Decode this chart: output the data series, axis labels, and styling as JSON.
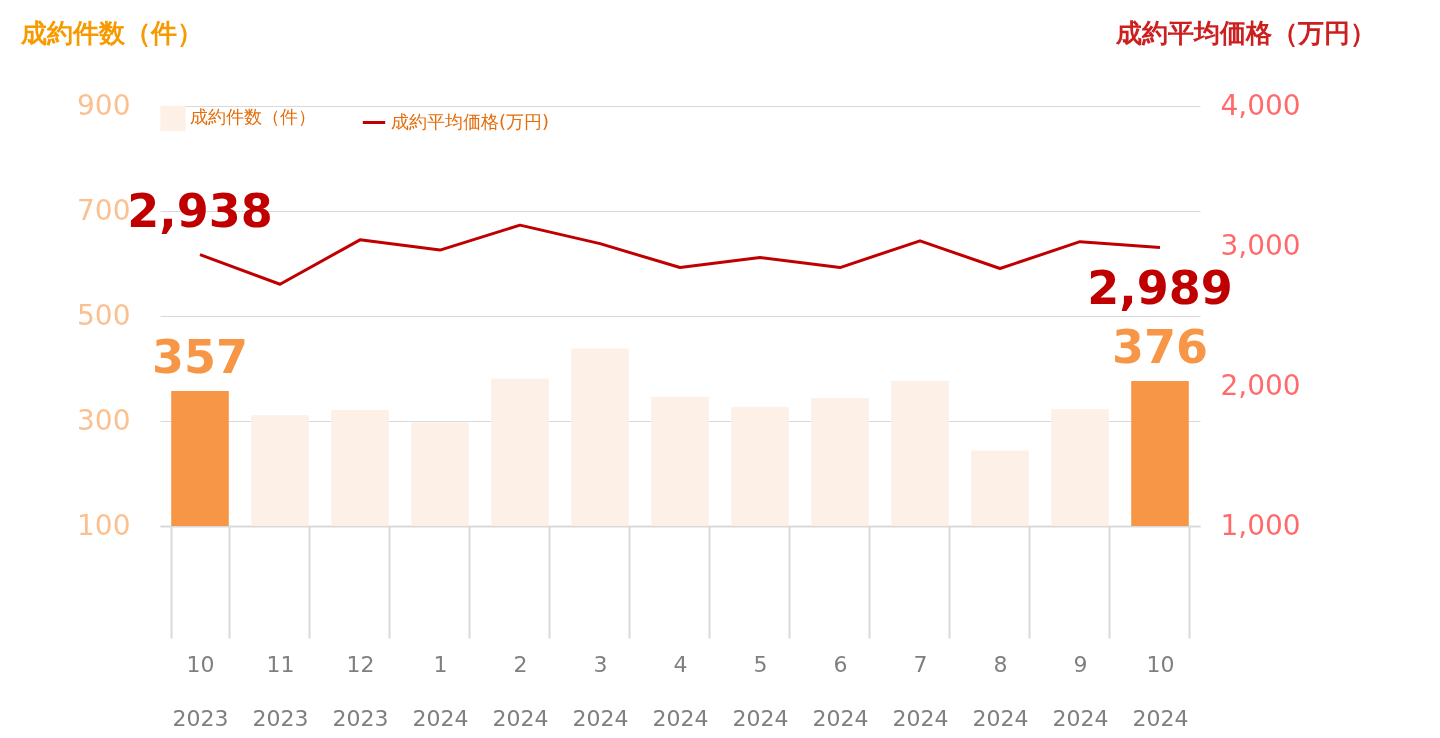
{
  "chart_data": {
    "type": "bar",
    "ylabel": "成約件数（件）",
    "y2label": "成約平均価格（万円）",
    "categories": [
      "10\n2023",
      "11\n2023",
      "12\n2023",
      "1\n2024",
      "2\n2024",
      "3\n2024",
      "4\n2024",
      "5\n2024",
      "6\n2024",
      "7\n2024",
      "8\n2024",
      "9\n2024",
      "10\n2024"
    ],
    "series": [
      {
        "name": "成約件数（件）",
        "color": "#fdf0e6",
        "colors": [
          "#f79646",
          "#fdf0e6",
          "#fdf0e6",
          "#fdf0e6",
          "#fdf0e6",
          "#fdf0e6",
          "#fdf0e6",
          "#fdf0e6",
          "#fdf0e6",
          "#fdf0e6",
          "#fdf0e6",
          "#fdf0e6",
          "#f79646"
        ],
        "values": [
          357,
          311,
          321,
          297,
          381,
          438,
          346,
          327,
          344,
          376,
          244,
          323,
          376
        ],
        "value_labels": [
          "357",
          null,
          null,
          null,
          null,
          null,
          null,
          null,
          null,
          null,
          null,
          null,
          "376"
        ]
      },
      {
        "name": "成約平均価格(万円)",
        "type": "line",
        "axis": "y2",
        "color": "#c00000",
        "values": [
          2938,
          2727,
          3044,
          2971,
          3149,
          3017,
          2846,
          2918,
          2846,
          3037,
          2839,
          3031,
          2989
        ],
        "value_labels": [
          "2,938",
          null,
          null,
          null,
          null,
          null,
          null,
          null,
          null,
          null,
          null,
          null,
          "2,989"
        ]
      }
    ],
    "ylim": [
      100,
      900
    ],
    "yticks": [
      100,
      300,
      500,
      700,
      900
    ],
    "y2lim": [
      1000,
      4000
    ],
    "y2ticks": [
      {
        "value": 1000,
        "label": "1,000"
      },
      {
        "value": 2000,
        "label": "2,000"
      },
      {
        "value": 3000,
        "label": "3,000"
      },
      {
        "value": 4000,
        "label": "4,000"
      }
    ],
    "grid": "y",
    "legend": "top",
    "marker": "none",
    "line_style": "solid"
  }
}
